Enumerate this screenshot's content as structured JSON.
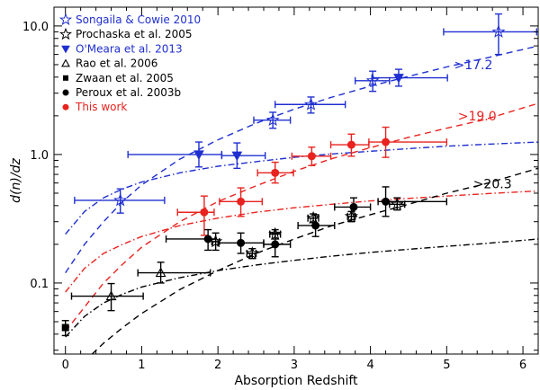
{
  "chart_data": {
    "type": "scatter",
    "title": "",
    "xlabel": "Absorption Redshift",
    "ylabel": "d(n)/dz",
    "xlim": [
      -0.15,
      6.2
    ],
    "ylim": [
      0.028,
      14
    ],
    "yscale": "log",
    "grid": false,
    "legend_position": "top-left",
    "x_ticks": [
      0,
      1,
      2,
      3,
      4,
      5,
      6
    ],
    "y_ticks": [
      0.1,
      1.0,
      10.0
    ],
    "x_tick_labels": [
      "0",
      "1",
      "2",
      "3",
      "4",
      "5",
      "6"
    ],
    "y_tick_labels": [
      "0.1",
      "1.0",
      "10.0"
    ],
    "legend": [
      {
        "label": "Songaila & Cowie 2010",
        "marker": "star-open",
        "color": "#1f2fd0"
      },
      {
        "label": "Prochaska et al. 2005",
        "marker": "star-open",
        "color": "#000000"
      },
      {
        "label": "O'Meara et al. 2013",
        "marker": "triangle-down",
        "color": "#1f2fd0"
      },
      {
        "label": "Rao et al. 2006",
        "marker": "triangle-open",
        "color": "#000000"
      },
      {
        "label": "Zwaan et al. 2005",
        "marker": "square",
        "color": "#000000"
      },
      {
        "label": "Peroux et al. 2003b",
        "marker": "circle",
        "color": "#000000"
      },
      {
        "label": "This work",
        "marker": "circle",
        "color": "#e8231f"
      }
    ],
    "annotations": [
      {
        "text": ">17.2",
        "color": "#1f2fd0",
        "x": 5.35,
        "y": 5.0
      },
      {
        "text": ">19.0",
        "color": "#e8231f",
        "x": 5.4,
        "y": 2.0
      },
      {
        "text": ">20.3",
        "color": "#000000",
        "x": 5.6,
        "y": 0.59
      }
    ],
    "series": [
      {
        "name": "Songaila & Cowie 2010",
        "color": "#1f2fd0",
        "marker": "star-open",
        "points": [
          {
            "x": 0.72,
            "y": 0.44,
            "xerr": [
              0.6,
              0.58
            ],
            "yerr": [
              0.09,
              0.1
            ]
          },
          {
            "x": 2.72,
            "y": 1.85,
            "xerr": [
              0.25,
              0.23
            ],
            "yerr": [
              0.25,
              0.28
            ]
          },
          {
            "x": 3.22,
            "y": 2.45,
            "xerr": [
              0.47,
              0.45
            ],
            "yerr": [
              0.35,
              0.35
            ]
          },
          {
            "x": 4.03,
            "y": 3.75,
            "xerr": [
              0.23,
              0.22
            ],
            "yerr": [
              0.65,
              0.7
            ]
          },
          {
            "x": 5.68,
            "y": 9.0,
            "xerr": [
              0.72,
              0.5
            ],
            "yerr": [
              3.0,
              3.4
            ]
          }
        ]
      },
      {
        "name": "O'Meara et al. 2013",
        "color": "#1f2fd0",
        "marker": "triangle-down",
        "points": [
          {
            "x": 1.75,
            "y": 1.0,
            "xerr": [
              0.93,
              0.3
            ],
            "yerr": [
              0.2,
              0.25
            ]
          },
          {
            "x": 2.25,
            "y": 0.98,
            "xerr": [
              0.2,
              0.37
            ],
            "yerr": [
              0.2,
              0.25
            ]
          },
          {
            "x": 4.37,
            "y": 3.95,
            "xerr": [
              0.35,
              0.64
            ],
            "yerr": [
              0.55,
              0.65
            ]
          }
        ]
      },
      {
        "name": "This work",
        "color": "#e8231f",
        "marker": "circle",
        "points": [
          {
            "x": 1.82,
            "y": 0.355,
            "xerr": [
              0.35,
              0.13
            ],
            "yerr": [
              0.12,
              0.12
            ]
          },
          {
            "x": 2.3,
            "y": 0.43,
            "xerr": [
              0.28,
              0.28
            ],
            "yerr": [
              0.1,
              0.12
            ]
          },
          {
            "x": 2.75,
            "y": 0.72,
            "xerr": [
              0.23,
              0.24
            ],
            "yerr": [
              0.12,
              0.15
            ]
          },
          {
            "x": 3.23,
            "y": 0.97,
            "xerr": [
              0.26,
              0.25
            ],
            "yerr": [
              0.15,
              0.17
            ]
          },
          {
            "x": 3.75,
            "y": 1.19,
            "xerr": [
              0.27,
              0.23
            ],
            "yerr": [
              0.22,
              0.25
            ]
          },
          {
            "x": 4.2,
            "y": 1.25,
            "xerr": [
              0.22,
              0.8
            ],
            "yerr": [
              0.3,
              0.38
            ]
          }
        ]
      },
      {
        "name": "Peroux et al. 2003b",
        "color": "#000000",
        "marker": "circle",
        "points": [
          {
            "x": 1.87,
            "y": 0.22,
            "xerr": [
              0.55,
              0.1
            ],
            "yerr": [
              0.04,
              0.04
            ]
          },
          {
            "x": 2.3,
            "y": 0.205,
            "xerr": [
              0.3,
              0.3
            ],
            "yerr": [
              0.035,
              0.04
            ]
          },
          {
            "x": 2.75,
            "y": 0.2,
            "xerr": [
              0.15,
              0.2
            ],
            "yerr": [
              0.04,
              0.045
            ]
          },
          {
            "x": 3.28,
            "y": 0.28,
            "xerr": [
              0.23,
              0.25
            ],
            "yerr": [
              0.05,
              0.06
            ]
          },
          {
            "x": 3.78,
            "y": 0.39,
            "xerr": [
              0.25,
              0.22
            ],
            "yerr": [
              0.06,
              0.07
            ]
          },
          {
            "x": 4.2,
            "y": 0.43,
            "xerr": [
              0.1,
              0.8
            ],
            "yerr": [
              0.1,
              0.13
            ]
          }
        ]
      },
      {
        "name": "Rao et al. 2006",
        "color": "#000000",
        "marker": "triangle-open",
        "points": [
          {
            "x": 0.6,
            "y": 0.079,
            "xerr": [
              0.52,
              0.42
            ],
            "yerr": [
              0.018,
              0.02
            ]
          },
          {
            "x": 1.25,
            "y": 0.12,
            "xerr": [
              0.3,
              0.65
            ],
            "yerr": [
              0.02,
              0.025
            ]
          }
        ]
      },
      {
        "name": "Prochaska et al. 2005",
        "color": "#000000",
        "marker": "star-open",
        "points": [
          {
            "x": 1.97,
            "y": 0.21,
            "xerr": [
              0.05,
              0.05
            ],
            "yerr": [
              0.03,
              0.035
            ]
          },
          {
            "x": 2.45,
            "y": 0.17,
            "xerr": [
              0.07,
              0.05
            ],
            "yerr": [
              0.015,
              0.015
            ]
          },
          {
            "x": 2.75,
            "y": 0.24,
            "xerr": [
              0.07,
              0.07
            ],
            "yerr": [
              0.02,
              0.02
            ]
          },
          {
            "x": 3.25,
            "y": 0.32,
            "xerr": [
              0.07,
              0.07
            ],
            "yerr": [
              0.025,
              0.025
            ]
          },
          {
            "x": 3.75,
            "y": 0.33,
            "xerr": [
              0.05,
              0.05
            ],
            "yerr": [
              0.03,
              0.03
            ]
          },
          {
            "x": 4.35,
            "y": 0.41,
            "xerr": [
              0.1,
              0.1
            ],
            "yerr": [
              0.04,
              0.05
            ]
          }
        ]
      },
      {
        "name": "Zwaan et al. 2005",
        "color": "#000000",
        "marker": "square",
        "points": [
          {
            "x": 0.0,
            "y": 0.045,
            "xerr": [
              0.0,
              0.0
            ],
            "yerr": [
              0.006,
              0.006
            ]
          }
        ]
      }
    ],
    "curves": [
      {
        "name": "dashed-blue",
        "color": "#1f2fd0",
        "style": "dashed",
        "x": [
          0,
          0.25,
          0.5,
          0.75,
          1,
          1.5,
          2,
          2.5,
          3,
          3.5,
          4,
          4.5,
          5,
          5.5,
          6.2
        ],
        "y": [
          0.12,
          0.2,
          0.3,
          0.43,
          0.58,
          0.92,
          1.3,
          1.75,
          2.25,
          2.8,
          3.4,
          4.05,
          4.8,
          5.6,
          7.0
        ]
      },
      {
        "name": "dashdot-blue",
        "color": "#1f2fd0",
        "style": "dashdot",
        "x": [
          0,
          0.25,
          0.5,
          0.75,
          1,
          1.5,
          2,
          2.5,
          3,
          3.5,
          4,
          4.5,
          5,
          5.5,
          6.2
        ],
        "y": [
          0.24,
          0.36,
          0.46,
          0.54,
          0.61,
          0.72,
          0.81,
          0.88,
          0.95,
          1.01,
          1.06,
          1.11,
          1.16,
          1.2,
          1.25
        ]
      },
      {
        "name": "dashed-red",
        "color": "#e8231f",
        "style": "dashed",
        "x": [
          0,
          0.25,
          0.5,
          0.75,
          1,
          1.5,
          2,
          2.5,
          3,
          3.5,
          4,
          4.5,
          5,
          5.5,
          6.2
        ],
        "y": [
          0.042,
          0.065,
          0.1,
          0.14,
          0.19,
          0.3,
          0.43,
          0.57,
          0.74,
          0.93,
          1.13,
          1.36,
          1.6,
          1.87,
          2.5
        ]
      },
      {
        "name": "dashdot-red",
        "color": "#e8231f",
        "style": "dashdot",
        "x": [
          0,
          0.25,
          0.5,
          0.75,
          1,
          1.5,
          2,
          2.5,
          3,
          3.5,
          4,
          4.5,
          5,
          5.5,
          6.2
        ],
        "y": [
          0.085,
          0.13,
          0.17,
          0.2,
          0.23,
          0.28,
          0.32,
          0.355,
          0.385,
          0.41,
          0.435,
          0.455,
          0.475,
          0.495,
          0.52
        ]
      },
      {
        "name": "dashed-black",
        "color": "#000000",
        "style": "dashed",
        "x": [
          0.35,
          0.5,
          0.75,
          1,
          1.5,
          2,
          2.5,
          3,
          3.5,
          4,
          4.5,
          5,
          5.5,
          6.2
        ],
        "y": [
          0.028,
          0.034,
          0.045,
          0.058,
          0.089,
          0.125,
          0.17,
          0.22,
          0.28,
          0.34,
          0.41,
          0.5,
          0.59,
          0.78
        ]
      },
      {
        "name": "dashdot-black",
        "color": "#000000",
        "style": "dashdot",
        "x": [
          0,
          0.25,
          0.5,
          0.75,
          1,
          1.5,
          2,
          2.5,
          3,
          3.5,
          4,
          4.5,
          5,
          5.5,
          6.2
        ],
        "y": [
          0.038,
          0.055,
          0.07,
          0.082,
          0.093,
          0.11,
          0.125,
          0.138,
          0.15,
          0.162,
          0.173,
          0.183,
          0.193,
          0.203,
          0.22
        ]
      }
    ]
  }
}
